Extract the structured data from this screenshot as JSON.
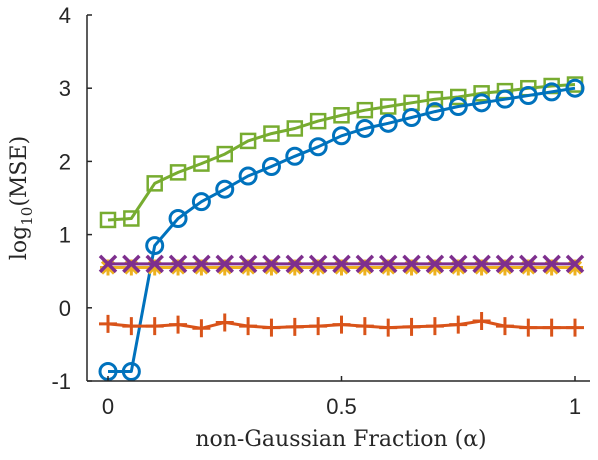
{
  "chart_data": {
    "type": "line",
    "xlabel": "non-Gaussian Fraction (α)",
    "ylabel": {
      "prefix": "log",
      "sub": "10",
      "suffix": "(MSE)"
    },
    "xlim": [
      0,
      1
    ],
    "ylim": [
      -1,
      4
    ],
    "xticks": [
      0,
      0.5,
      1
    ],
    "xtick_labels": [
      "0",
      "0.5",
      "1"
    ],
    "yticks": [
      -1,
      0,
      1,
      2,
      3,
      4
    ],
    "ytick_labels": [
      "-1",
      "0",
      "1",
      "2",
      "3",
      "4"
    ],
    "grid": false,
    "legend": "none",
    "x": [
      0,
      0.05,
      0.1,
      0.15,
      0.2,
      0.25,
      0.3,
      0.35,
      0.4,
      0.45,
      0.5,
      0.55,
      0.6,
      0.65,
      0.7,
      0.75,
      0.8,
      0.85,
      0.9,
      0.95,
      1.0
    ],
    "series": [
      {
        "marker": "square",
        "color": "#77AC30",
        "values": [
          1.2,
          1.22,
          1.7,
          1.85,
          1.97,
          2.1,
          2.28,
          2.38,
          2.45,
          2.55,
          2.63,
          2.7,
          2.75,
          2.8,
          2.85,
          2.88,
          2.93,
          2.96,
          3.0,
          3.03,
          3.05
        ]
      },
      {
        "marker": "circle",
        "color": "#0072BD",
        "values": [
          -0.87,
          -0.87,
          0.85,
          1.22,
          1.45,
          1.62,
          1.8,
          1.93,
          2.07,
          2.2,
          2.35,
          2.45,
          2.52,
          2.6,
          2.68,
          2.75,
          2.8,
          2.85,
          2.9,
          2.95,
          3.0
        ]
      },
      {
        "marker": "asterisk",
        "color": "#EDB120",
        "values": [
          0.55,
          0.55,
          0.55,
          0.55,
          0.55,
          0.55,
          0.55,
          0.55,
          0.55,
          0.55,
          0.55,
          0.55,
          0.55,
          0.55,
          0.55,
          0.55,
          0.55,
          0.55,
          0.55,
          0.55,
          0.55
        ]
      },
      {
        "marker": "x",
        "color": "#7E2F8E",
        "values": [
          0.6,
          0.6,
          0.6,
          0.6,
          0.6,
          0.6,
          0.6,
          0.6,
          0.6,
          0.6,
          0.6,
          0.6,
          0.6,
          0.6,
          0.6,
          0.6,
          0.6,
          0.6,
          0.6,
          0.6,
          0.6
        ]
      },
      {
        "marker": "plus",
        "color": "#D95319",
        "values": [
          -0.22,
          -0.25,
          -0.25,
          -0.23,
          -0.28,
          -0.2,
          -0.25,
          -0.27,
          -0.26,
          -0.25,
          -0.23,
          -0.25,
          -0.27,
          -0.26,
          -0.25,
          -0.23,
          -0.18,
          -0.25,
          -0.27,
          -0.27,
          -0.27
        ]
      }
    ]
  }
}
